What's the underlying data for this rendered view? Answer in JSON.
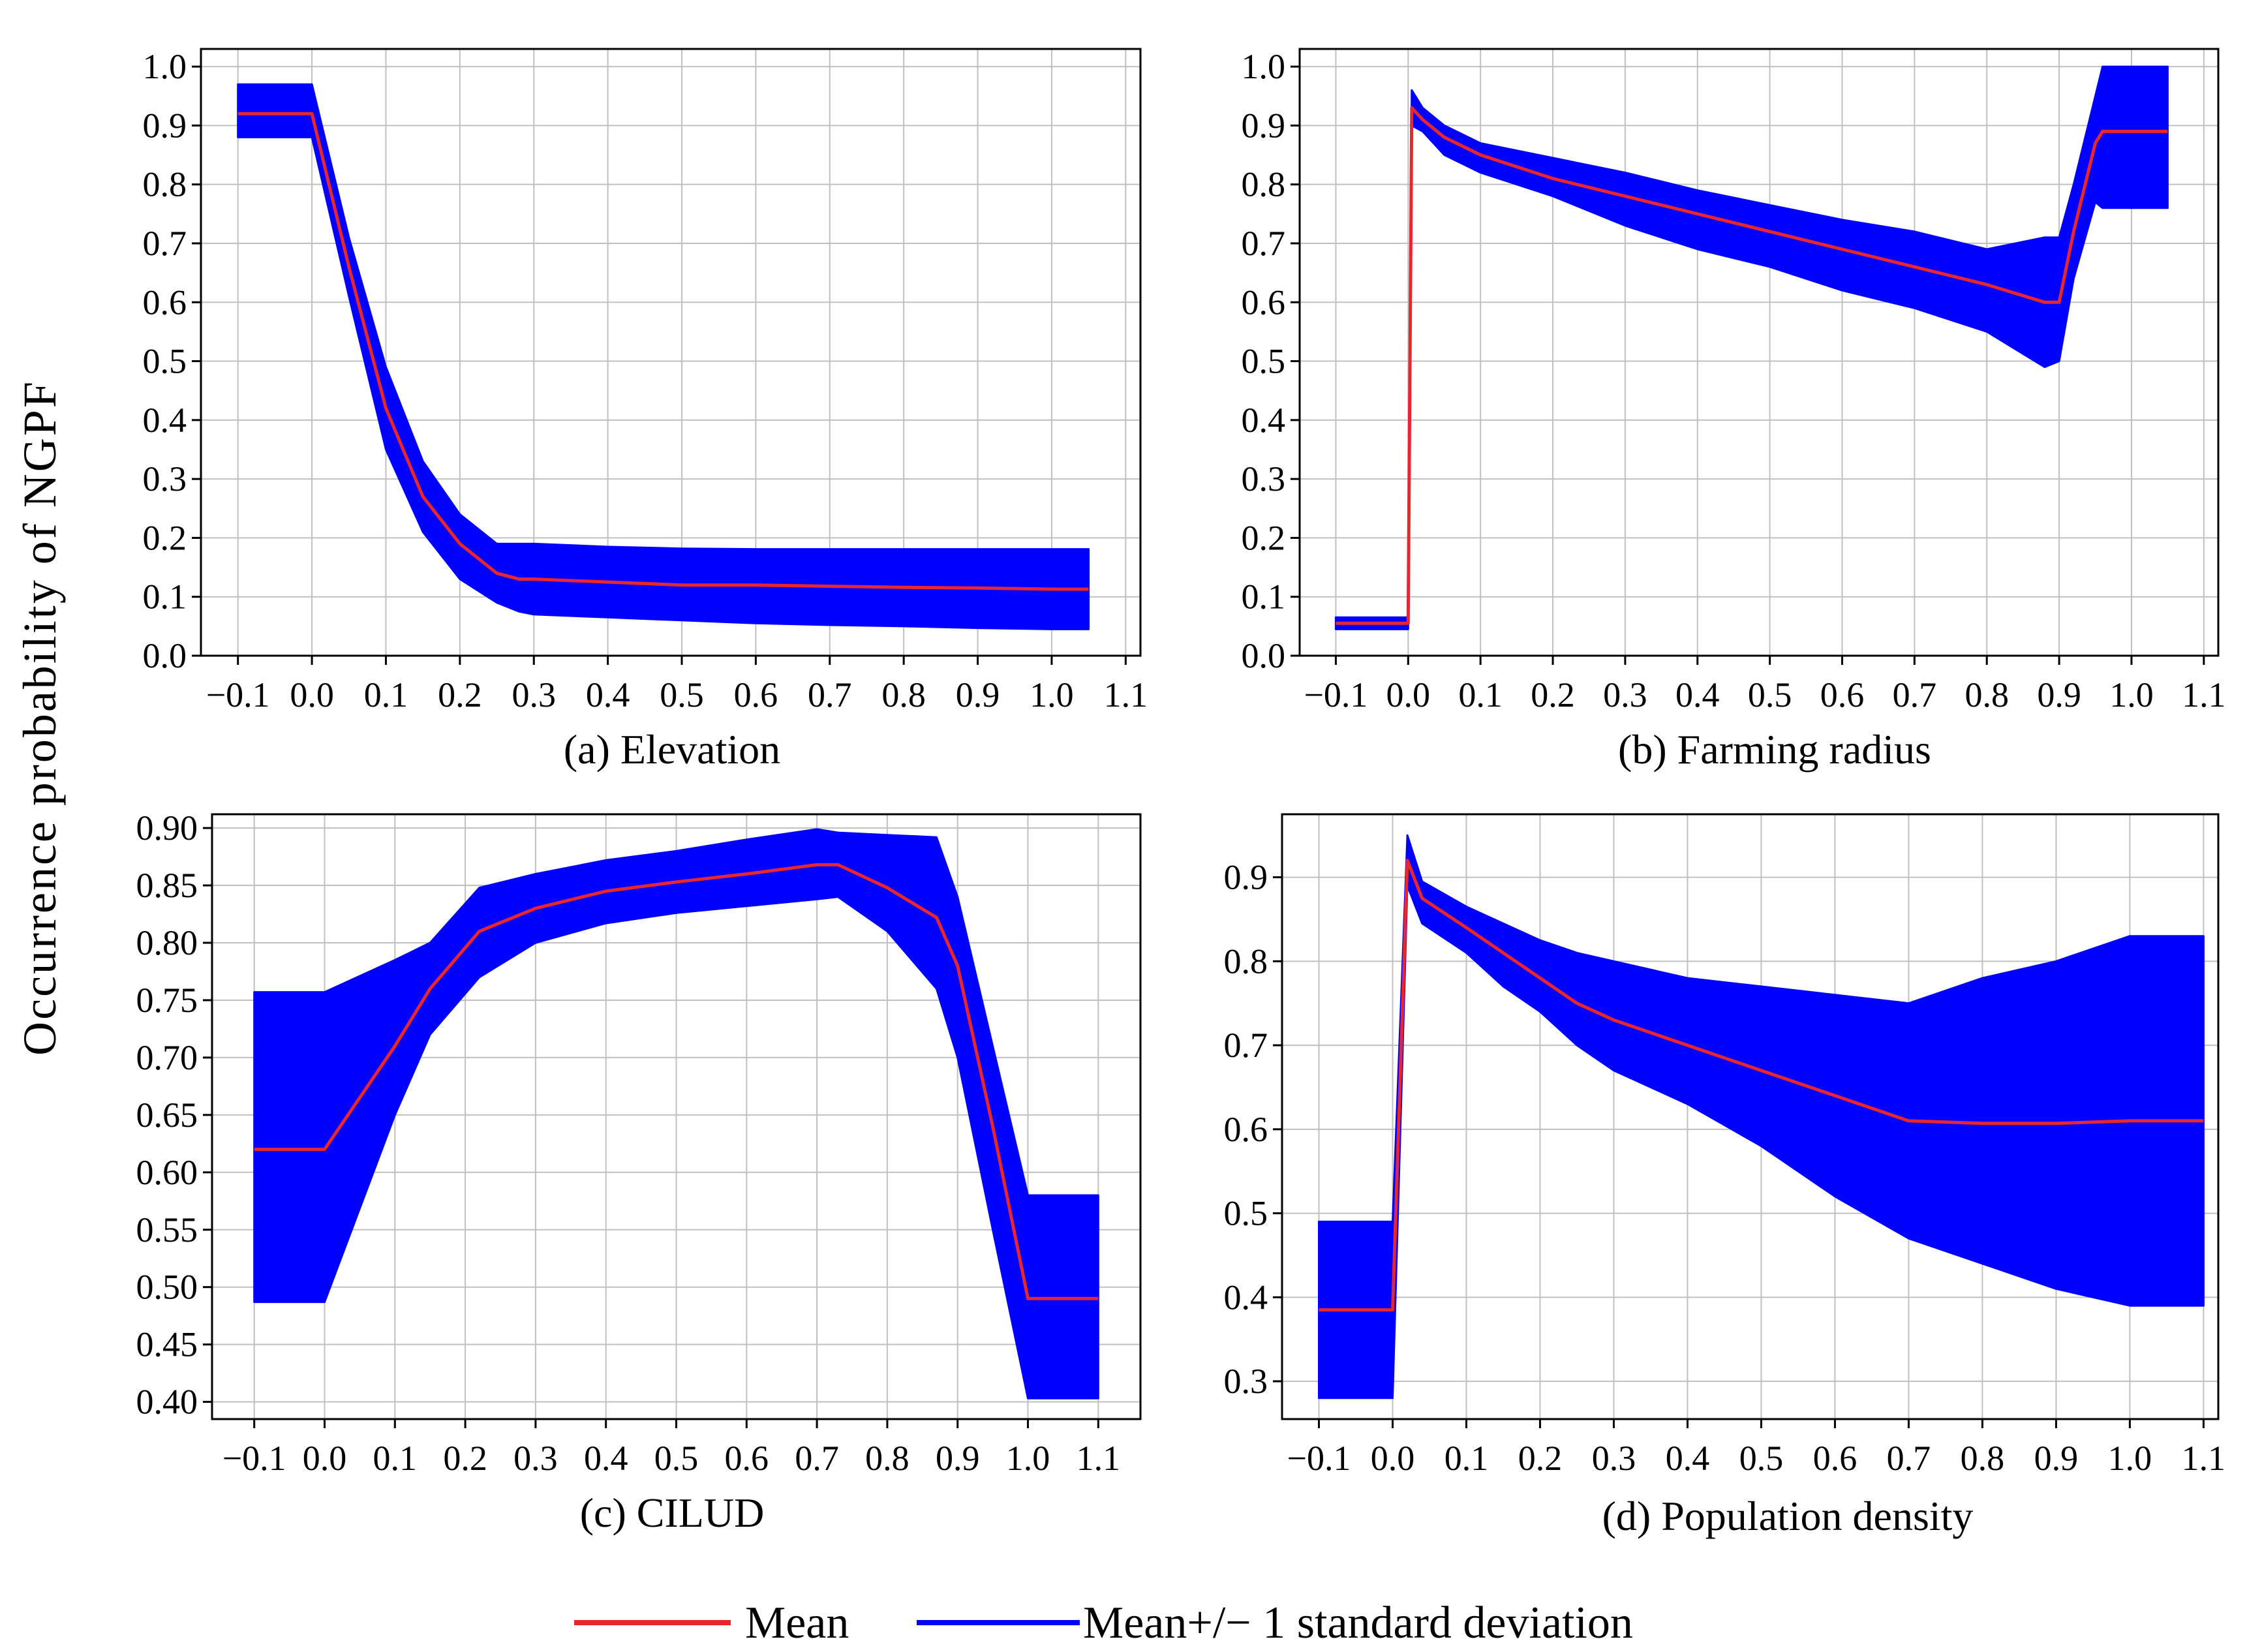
{
  "figure": {
    "ylabel": "Occurrence probability of NGPF",
    "legend": {
      "mean_label": "Mean",
      "std_label": "Mean+/− 1 standard deviation"
    },
    "colors": {
      "mean": "#e8262d",
      "band": "#0000ff",
      "grid": "#c0c0c0",
      "axis": "#000000"
    }
  },
  "chart_data": [
    {
      "type": "line",
      "title": "(a) Elevation",
      "xlim": [
        -0.15,
        1.12
      ],
      "ylim": [
        0.0,
        1.03
      ],
      "xticks": [
        -0.1,
        0.0,
        0.1,
        0.2,
        0.3,
        0.4,
        0.5,
        0.6,
        0.7,
        0.8,
        0.9,
        1.0,
        1.1
      ],
      "xticklabels": [
        "−0.1",
        "0.0",
        "0.1",
        "0.2",
        "0.3",
        "0.4",
        "0.5",
        "0.6",
        "0.7",
        "0.8",
        "0.9",
        "1.0",
        "1.1"
      ],
      "yticks": [
        0.0,
        0.1,
        0.2,
        0.3,
        0.4,
        0.5,
        0.6,
        0.7,
        0.8,
        0.9,
        1.0
      ],
      "yticklabels": [
        "0.0",
        "0.1",
        "0.2",
        "0.3",
        "0.4",
        "0.5",
        "0.6",
        "0.7",
        "0.8",
        "0.9",
        "1.0"
      ],
      "x": [
        -0.1,
        0.0,
        0.05,
        0.1,
        0.15,
        0.2,
        0.25,
        0.28,
        0.3,
        0.4,
        0.5,
        0.6,
        0.7,
        0.8,
        0.9,
        1.0,
        1.05
      ],
      "mean": [
        0.92,
        0.92,
        0.66,
        0.42,
        0.27,
        0.19,
        0.14,
        0.13,
        0.13,
        0.125,
        0.12,
        0.12,
        0.118,
        0.116,
        0.115,
        0.113,
        0.113
      ],
      "upper": [
        0.97,
        0.97,
        0.71,
        0.49,
        0.33,
        0.24,
        0.19,
        0.19,
        0.19,
        0.185,
        0.182,
        0.181,
        0.181,
        0.181,
        0.181,
        0.181,
        0.181
      ],
      "lower": [
        0.88,
        0.88,
        0.61,
        0.35,
        0.21,
        0.13,
        0.09,
        0.075,
        0.07,
        0.065,
        0.06,
        0.055,
        0.052,
        0.05,
        0.047,
        0.045,
        0.045
      ]
    },
    {
      "type": "line",
      "title": "(b) Farming radius",
      "xlim": [
        -0.15,
        1.12
      ],
      "ylim": [
        0.0,
        1.03
      ],
      "xticks": [
        -0.1,
        0.0,
        0.1,
        0.2,
        0.3,
        0.4,
        0.5,
        0.6,
        0.7,
        0.8,
        0.9,
        1.0,
        1.1
      ],
      "xticklabels": [
        "−0.1",
        "0.0",
        "0.1",
        "0.2",
        "0.3",
        "0.4",
        "0.5",
        "0.6",
        "0.7",
        "0.8",
        "0.9",
        "1.0",
        "1.1"
      ],
      "yticks": [
        0.0,
        0.1,
        0.2,
        0.3,
        0.4,
        0.5,
        0.6,
        0.7,
        0.8,
        0.9,
        1.0
      ],
      "yticklabels": [
        "0.0",
        "0.1",
        "0.2",
        "0.3",
        "0.4",
        "0.5",
        "0.6",
        "0.7",
        "0.8",
        "0.9",
        "1.0"
      ],
      "x": [
        -0.1,
        0.0,
        0.005,
        0.02,
        0.05,
        0.1,
        0.2,
        0.3,
        0.4,
        0.5,
        0.6,
        0.7,
        0.8,
        0.88,
        0.9,
        0.92,
        0.95,
        0.96,
        1.05
      ],
      "mean": [
        0.055,
        0.055,
        0.93,
        0.91,
        0.88,
        0.85,
        0.81,
        0.78,
        0.75,
        0.72,
        0.69,
        0.66,
        0.63,
        0.6,
        0.6,
        0.72,
        0.87,
        0.89,
        0.89
      ],
      "upper": [
        0.065,
        0.065,
        0.96,
        0.93,
        0.9,
        0.87,
        0.845,
        0.82,
        0.79,
        0.765,
        0.74,
        0.72,
        0.69,
        0.71,
        0.71,
        0.8,
        0.95,
        1.0,
        1.0
      ],
      "lower": [
        0.045,
        0.045,
        0.9,
        0.89,
        0.85,
        0.82,
        0.78,
        0.73,
        0.69,
        0.66,
        0.62,
        0.59,
        0.55,
        0.49,
        0.5,
        0.64,
        0.77,
        0.76,
        0.76
      ]
    },
    {
      "type": "line",
      "title": "(c) CILUD",
      "xlim": [
        -0.16,
        1.16
      ],
      "ylim": [
        0.385,
        0.912
      ],
      "xticks": [
        -0.1,
        0.0,
        0.1,
        0.2,
        0.3,
        0.4,
        0.5,
        0.6,
        0.7,
        0.8,
        0.9,
        1.0,
        1.1
      ],
      "xticklabels": [
        "−0.1",
        "0.0",
        "0.1",
        "0.2",
        "0.3",
        "0.4",
        "0.5",
        "0.6",
        "0.7",
        "0.8",
        "0.9",
        "1.0",
        "1.1"
      ],
      "yticks": [
        0.4,
        0.45,
        0.5,
        0.55,
        0.6,
        0.65,
        0.7,
        0.75,
        0.8,
        0.85,
        0.9
      ],
      "yticklabels": [
        "0.40",
        "0.45",
        "0.50",
        "0.55",
        "0.60",
        "0.65",
        "0.70",
        "0.75",
        "0.80",
        "0.85",
        "0.90"
      ],
      "x": [
        -0.1,
        0.0,
        0.1,
        0.15,
        0.22,
        0.3,
        0.4,
        0.5,
        0.6,
        0.7,
        0.73,
        0.8,
        0.87,
        0.9,
        0.95,
        1.0,
        1.1
      ],
      "mean": [
        0.62,
        0.62,
        0.71,
        0.76,
        0.81,
        0.83,
        0.845,
        0.853,
        0.86,
        0.868,
        0.868,
        0.848,
        0.822,
        0.78,
        0.64,
        0.49,
        0.49
      ],
      "upper": [
        0.757,
        0.757,
        0.785,
        0.8,
        0.848,
        0.86,
        0.872,
        0.88,
        0.89,
        0.899,
        0.896,
        0.894,
        0.892,
        0.84,
        0.71,
        0.58,
        0.58
      ],
      "lower": [
        0.487,
        0.487,
        0.65,
        0.72,
        0.77,
        0.8,
        0.817,
        0.826,
        0.832,
        0.838,
        0.84,
        0.81,
        0.76,
        0.7,
        0.55,
        0.403,
        0.403
      ]
    },
    {
      "type": "line",
      "title": "(d) Population density",
      "xlim": [
        -0.15,
        1.12
      ],
      "ylim": [
        0.255,
        0.975
      ],
      "xticks": [
        -0.1,
        0.0,
        0.1,
        0.2,
        0.3,
        0.4,
        0.5,
        0.6,
        0.7,
        0.8,
        0.9,
        1.0,
        1.1
      ],
      "xticklabels": [
        "−0.1",
        "0.0",
        "0.1",
        "0.2",
        "0.3",
        "0.4",
        "0.5",
        "0.6",
        "0.7",
        "0.8",
        "0.9",
        "1.0",
        "1.1"
      ],
      "yticks": [
        0.3,
        0.4,
        0.5,
        0.6,
        0.7,
        0.8,
        0.9
      ],
      "yticklabels": [
        "0.3",
        "0.4",
        "0.5",
        "0.6",
        "0.7",
        "0.8",
        "0.9"
      ],
      "x": [
        -0.1,
        0.0,
        0.02,
        0.04,
        0.1,
        0.15,
        0.2,
        0.25,
        0.3,
        0.4,
        0.5,
        0.6,
        0.7,
        0.8,
        0.9,
        1.0,
        1.1
      ],
      "mean": [
        0.385,
        0.385,
        0.92,
        0.875,
        0.84,
        0.81,
        0.78,
        0.75,
        0.73,
        0.7,
        0.67,
        0.64,
        0.61,
        0.607,
        0.607,
        0.61,
        0.61
      ],
      "upper": [
        0.49,
        0.49,
        0.95,
        0.895,
        0.865,
        0.845,
        0.825,
        0.81,
        0.8,
        0.78,
        0.77,
        0.76,
        0.75,
        0.78,
        0.8,
        0.83,
        0.83
      ],
      "lower": [
        0.28,
        0.28,
        0.89,
        0.845,
        0.81,
        0.77,
        0.74,
        0.7,
        0.67,
        0.63,
        0.58,
        0.52,
        0.47,
        0.44,
        0.41,
        0.39,
        0.39
      ]
    }
  ]
}
